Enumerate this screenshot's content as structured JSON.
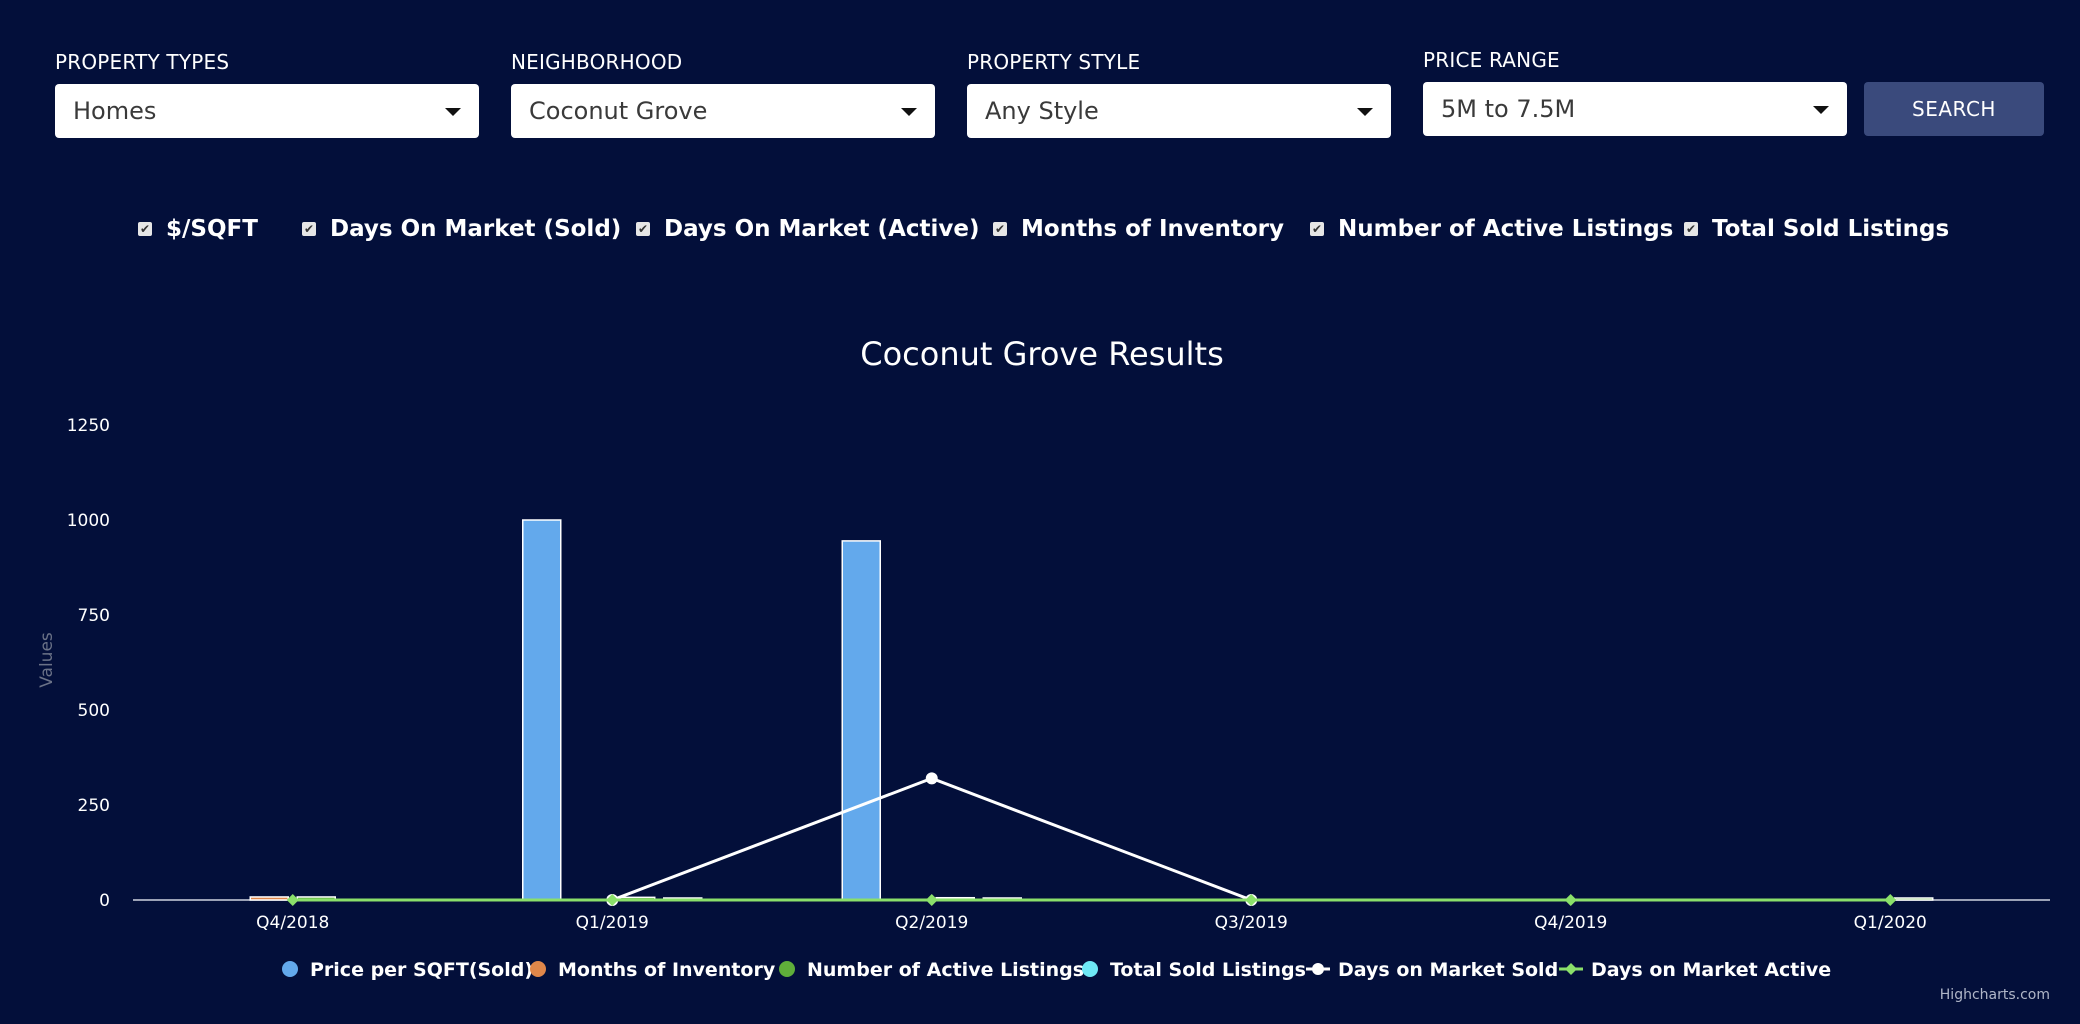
{
  "filters": {
    "property_types": {
      "label": "PROPERTY TYPES",
      "value": "Homes"
    },
    "neighborhood": {
      "label": "NEIGHBORHOOD",
      "value": "Coconut Grove"
    },
    "property_style": {
      "label": "PROPERTY STYLE",
      "value": "Any Style"
    },
    "price_range": {
      "label": "PRICE RANGE",
      "value": "5M to 7.5M"
    },
    "search_label": "SEARCH"
  },
  "toggles": [
    {
      "label": "$/SQFT",
      "checked": true
    },
    {
      "label": "Days On Market (Sold)",
      "checked": true
    },
    {
      "label": "Days On Market (Active)",
      "checked": true
    },
    {
      "label": "Months of Inventory",
      "checked": true
    },
    {
      "label": "Number of Active Listings",
      "checked": true
    },
    {
      "label": "Total Sold Listings",
      "checked": true
    }
  ],
  "chart_data": {
    "type": "bar",
    "title": "Coconut Grove Results",
    "ylabel": "Values",
    "xlabel": "",
    "ylim": [
      0,
      1250
    ],
    "yticks": [
      0,
      250,
      500,
      750,
      1000,
      1250
    ],
    "grid": false,
    "legend_position": "bottom-center",
    "categories": [
      "Q4/2018",
      "Q1/2019",
      "Q2/2019",
      "Q3/2019",
      "Q4/2019",
      "Q1/2020"
    ],
    "series": [
      {
        "name": "Price per SQFT(Sold)",
        "type": "column",
        "color": "#63a9ec",
        "values": [
          0,
          1000,
          945,
          0,
          0,
          0
        ]
      },
      {
        "name": "Months of Inventory",
        "type": "column",
        "color": "#e0874a",
        "values": [
          8,
          0,
          0,
          0,
          0,
          0
        ]
      },
      {
        "name": "Number of Active Listings",
        "type": "column",
        "color": "#5fae3a",
        "values": [
          8,
          7,
          6,
          0,
          0,
          3
        ]
      },
      {
        "name": "Total Sold Listings",
        "type": "column",
        "color": "#6ee8f5",
        "values": [
          0,
          1,
          1,
          0,
          0,
          0
        ]
      },
      {
        "name": "Days on Market Sold",
        "type": "line",
        "color": "#ffffff",
        "values": [
          null,
          0,
          320,
          0,
          null,
          null
        ]
      },
      {
        "name": "Days on Market Active",
        "type": "line",
        "color": "#8be06a",
        "values": [
          0,
          0,
          0,
          0,
          0,
          0
        ]
      }
    ],
    "credits": "Highcharts.com"
  }
}
